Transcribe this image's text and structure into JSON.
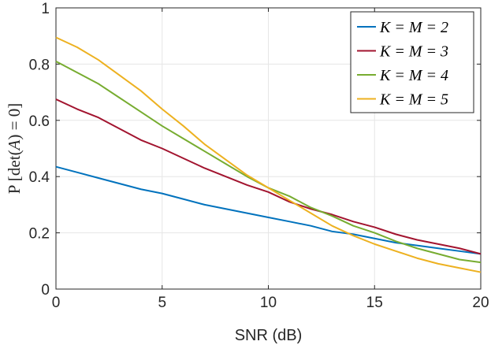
{
  "chart_data": {
    "type": "line",
    "title": "",
    "xlabel": "SNR (dB)",
    "ylabel": "P [det(A) = 0]",
    "xlim": [
      0,
      20
    ],
    "ylim": [
      0,
      1
    ],
    "xticks": [
      0,
      5,
      10,
      15,
      20
    ],
    "yticks": [
      0,
      0.2,
      0.4,
      0.6,
      0.8,
      1
    ],
    "ytick_labels": [
      "0",
      "0.2",
      "0.4",
      "0.6",
      "0.8",
      "1"
    ],
    "grid": true,
    "legend_position": "top-right",
    "x": [
      0,
      1,
      2,
      3,
      4,
      5,
      6,
      7,
      8,
      9,
      10,
      11,
      12,
      13,
      14,
      15,
      16,
      17,
      18,
      19,
      20
    ],
    "series": [
      {
        "name": "K = M = 2",
        "color": "#0072BD",
        "values": [
          0.435,
          0.415,
          0.395,
          0.375,
          0.355,
          0.34,
          0.32,
          0.3,
          0.285,
          0.27,
          0.255,
          0.24,
          0.225,
          0.205,
          0.195,
          0.18,
          0.165,
          0.155,
          0.145,
          0.135,
          0.125
        ]
      },
      {
        "name": "K = M = 3",
        "color": "#A2142F",
        "values": [
          0.675,
          0.64,
          0.61,
          0.57,
          0.53,
          0.5,
          0.465,
          0.43,
          0.4,
          0.37,
          0.345,
          0.31,
          0.285,
          0.265,
          0.24,
          0.22,
          0.195,
          0.175,
          0.16,
          0.145,
          0.125
        ]
      },
      {
        "name": "K = M = 4",
        "color": "#77AC30",
        "values": [
          0.81,
          0.77,
          0.73,
          0.68,
          0.63,
          0.58,
          0.535,
          0.49,
          0.445,
          0.4,
          0.36,
          0.33,
          0.29,
          0.26,
          0.225,
          0.2,
          0.17,
          0.145,
          0.125,
          0.105,
          0.095
        ]
      },
      {
        "name": "K = M = 5",
        "color": "#EDB120",
        "values": [
          0.895,
          0.86,
          0.815,
          0.76,
          0.705,
          0.64,
          0.58,
          0.515,
          0.46,
          0.405,
          0.36,
          0.315,
          0.27,
          0.225,
          0.19,
          0.16,
          0.135,
          0.11,
          0.09,
          0.075,
          0.06
        ]
      }
    ]
  }
}
